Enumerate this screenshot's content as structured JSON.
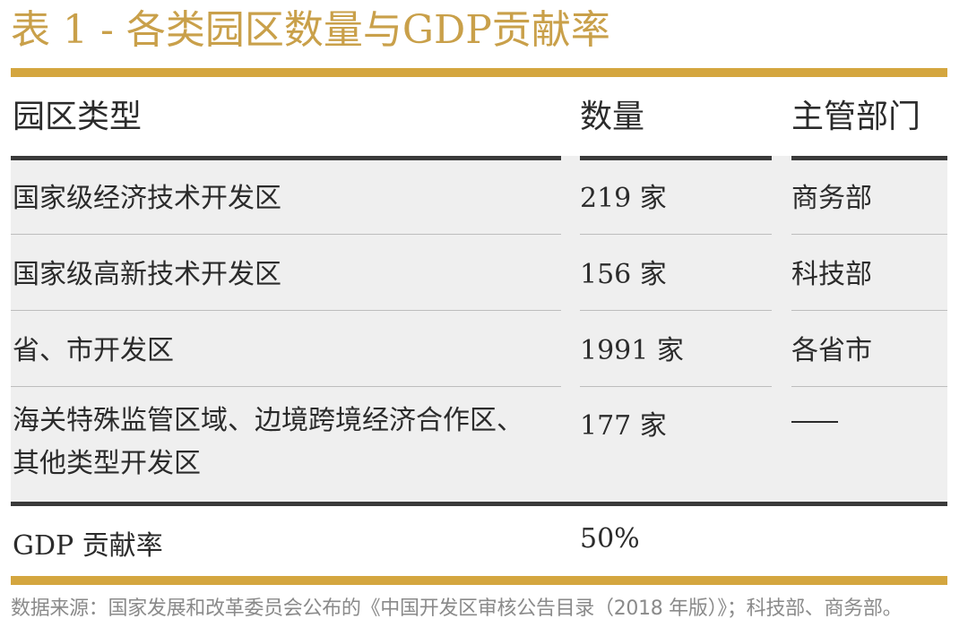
{
  "title": "表 1 - 各类园区数量与GDP贡献率",
  "table": {
    "headers": [
      "园区类型",
      "数量",
      "主管部门"
    ],
    "rows": [
      {
        "type": "国家级经济技术开发区",
        "count": "219 家",
        "department": "商务部"
      },
      {
        "type": "国家级高新技术开发区",
        "count": "156 家",
        "department": "科技部"
      },
      {
        "type": "省、市开发区",
        "count": "1991 家",
        "department": "各省市"
      },
      {
        "type": "海关特殊监管区域、边境跨境经济合作区、其他类型开发区",
        "type_line1": "海关特殊监管区域、边境跨境经济合作区、",
        "type_line2": "其他类型开发区",
        "count": "177 家",
        "department": "——"
      }
    ],
    "summary": {
      "label": "GDP 贡献率",
      "value": "50%"
    }
  },
  "footnote": "数据来源：国家发展和改革委员会公布的《中国开发区审核公告目录（2018 年版）》；科技部、商务部。",
  "colors": {
    "accent": "#d4a63f",
    "title": "#c9a04a",
    "row_background": "#efefef",
    "text": "#2b2b2b",
    "footnote": "#8a8a8a"
  }
}
